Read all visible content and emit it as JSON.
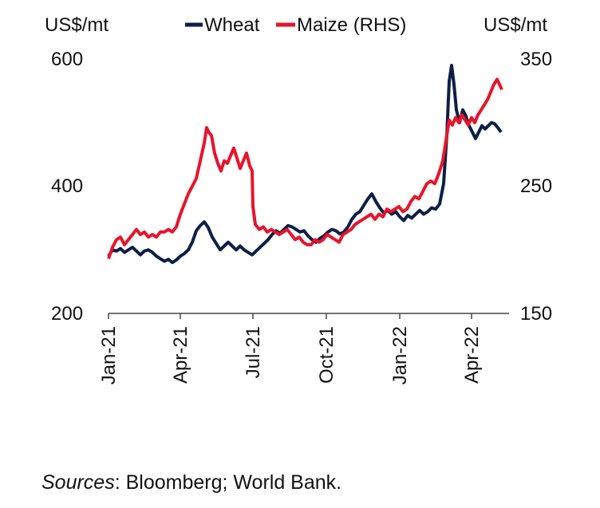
{
  "chart_data": {
    "type": "line",
    "left_unit": "US$/mt",
    "right_unit": "US$/mt",
    "left_ylim": [
      200,
      600
    ],
    "right_ylim": [
      150,
      350
    ],
    "left_ticks": [
      "600",
      "400",
      "200"
    ],
    "right_ticks": [
      "350",
      "250",
      "150"
    ],
    "x_ticks": [
      "Jan-21",
      "Apr-21",
      "Jul-21",
      "Oct-21",
      "Jan-22",
      "Apr-22"
    ],
    "x_tick_dates": [
      "2021-01-01",
      "2021-04-01",
      "2021-07-01",
      "2021-10-01",
      "2022-01-01",
      "2022-04-01"
    ],
    "x_range": [
      "2021-01-01",
      "2022-05-10"
    ],
    "grid": false,
    "legend_position": "top-center",
    "series": [
      {
        "name": "Wheat",
        "axis": "left",
        "color": "#0d1f45",
        "points": [
          [
            "2021-01-01",
            290
          ],
          [
            "2021-01-06",
            300
          ],
          [
            "2021-01-11",
            298
          ],
          [
            "2021-01-16",
            302
          ],
          [
            "2021-01-21",
            296
          ],
          [
            "2021-01-26",
            300
          ],
          [
            "2021-01-31",
            304
          ],
          [
            "2021-02-05",
            298
          ],
          [
            "2021-02-10",
            292
          ],
          [
            "2021-02-15",
            298
          ],
          [
            "2021-02-20",
            300
          ],
          [
            "2021-02-25",
            296
          ],
          [
            "2021-03-02",
            290
          ],
          [
            "2021-03-07",
            286
          ],
          [
            "2021-03-12",
            282
          ],
          [
            "2021-03-17",
            285
          ],
          [
            "2021-03-22",
            280
          ],
          [
            "2021-03-27",
            284
          ],
          [
            "2021-04-01",
            290
          ],
          [
            "2021-04-06",
            294
          ],
          [
            "2021-04-11",
            300
          ],
          [
            "2021-04-16",
            312
          ],
          [
            "2021-04-21",
            330
          ],
          [
            "2021-04-26",
            338
          ],
          [
            "2021-05-01",
            344
          ],
          [
            "2021-05-06",
            335
          ],
          [
            "2021-05-11",
            320
          ],
          [
            "2021-05-16",
            310
          ],
          [
            "2021-05-21",
            300
          ],
          [
            "2021-05-26",
            306
          ],
          [
            "2021-05-31",
            312
          ],
          [
            "2021-06-05",
            306
          ],
          [
            "2021-06-10",
            300
          ],
          [
            "2021-06-15",
            306
          ],
          [
            "2021-06-20",
            300
          ],
          [
            "2021-06-25",
            296
          ],
          [
            "2021-06-30",
            292
          ],
          [
            "2021-07-05",
            298
          ],
          [
            "2021-07-10",
            304
          ],
          [
            "2021-07-15",
            310
          ],
          [
            "2021-07-20",
            316
          ],
          [
            "2021-07-25",
            324
          ],
          [
            "2021-07-30",
            330
          ],
          [
            "2021-08-04",
            326
          ],
          [
            "2021-08-09",
            332
          ],
          [
            "2021-08-14",
            338
          ],
          [
            "2021-08-19",
            336
          ],
          [
            "2021-08-24",
            332
          ],
          [
            "2021-08-29",
            328
          ],
          [
            "2021-09-03",
            330
          ],
          [
            "2021-09-08",
            322
          ],
          [
            "2021-09-13",
            316
          ],
          [
            "2021-09-18",
            312
          ],
          [
            "2021-09-23",
            318
          ],
          [
            "2021-09-28",
            322
          ],
          [
            "2021-10-03",
            328
          ],
          [
            "2021-10-08",
            332
          ],
          [
            "2021-10-13",
            330
          ],
          [
            "2021-10-18",
            325
          ],
          [
            "2021-10-23",
            328
          ],
          [
            "2021-10-28",
            336
          ],
          [
            "2021-11-02",
            348
          ],
          [
            "2021-11-07",
            356
          ],
          [
            "2021-11-12",
            360
          ],
          [
            "2021-11-17",
            370
          ],
          [
            "2021-11-22",
            380
          ],
          [
            "2021-11-27",
            388
          ],
          [
            "2021-12-02",
            376
          ],
          [
            "2021-12-07",
            366
          ],
          [
            "2021-12-12",
            358
          ],
          [
            "2021-12-17",
            362
          ],
          [
            "2021-12-22",
            356
          ],
          [
            "2021-12-27",
            360
          ],
          [
            "2022-01-01",
            352
          ],
          [
            "2022-01-06",
            346
          ],
          [
            "2022-01-11",
            354
          ],
          [
            "2022-01-16",
            350
          ],
          [
            "2022-01-21",
            356
          ],
          [
            "2022-01-26",
            362
          ],
          [
            "2022-01-31",
            356
          ],
          [
            "2022-02-05",
            360
          ],
          [
            "2022-02-10",
            366
          ],
          [
            "2022-02-15",
            364
          ],
          [
            "2022-02-20",
            372
          ],
          [
            "2022-02-25",
            404
          ],
          [
            "2022-03-01",
            480
          ],
          [
            "2022-03-04",
            565
          ],
          [
            "2022-03-07",
            590
          ],
          [
            "2022-03-10",
            560
          ],
          [
            "2022-03-13",
            520
          ],
          [
            "2022-03-17",
            500
          ],
          [
            "2022-03-21",
            520
          ],
          [
            "2022-03-25",
            510
          ],
          [
            "2022-03-29",
            495
          ],
          [
            "2022-04-02",
            485
          ],
          [
            "2022-04-06",
            475
          ],
          [
            "2022-04-10",
            485
          ],
          [
            "2022-04-14",
            495
          ],
          [
            "2022-04-18",
            490
          ],
          [
            "2022-04-22",
            495
          ],
          [
            "2022-04-26",
            500
          ],
          [
            "2022-04-30",
            498
          ],
          [
            "2022-05-04",
            492
          ],
          [
            "2022-05-08",
            485
          ]
        ]
      },
      {
        "name": "Maize (RHS)",
        "axis": "right",
        "color": "#e8142b",
        "points": [
          [
            "2021-01-01",
            193
          ],
          [
            "2021-01-06",
            202
          ],
          [
            "2021-01-11",
            208
          ],
          [
            "2021-01-16",
            210
          ],
          [
            "2021-01-21",
            204
          ],
          [
            "2021-01-26",
            208
          ],
          [
            "2021-01-31",
            212
          ],
          [
            "2021-02-05",
            216
          ],
          [
            "2021-02-10",
            212
          ],
          [
            "2021-02-15",
            214
          ],
          [
            "2021-02-20",
            210
          ],
          [
            "2021-02-25",
            212
          ],
          [
            "2021-03-02",
            210
          ],
          [
            "2021-03-07",
            214
          ],
          [
            "2021-03-12",
            214
          ],
          [
            "2021-03-17",
            216
          ],
          [
            "2021-03-22",
            214
          ],
          [
            "2021-03-27",
            218
          ],
          [
            "2021-04-01",
            228
          ],
          [
            "2021-04-06",
            236
          ],
          [
            "2021-04-11",
            244
          ],
          [
            "2021-04-16",
            250
          ],
          [
            "2021-04-21",
            256
          ],
          [
            "2021-04-26",
            270
          ],
          [
            "2021-05-01",
            284
          ],
          [
            "2021-05-04",
            296
          ],
          [
            "2021-05-07",
            292
          ],
          [
            "2021-05-10",
            290
          ],
          [
            "2021-05-14",
            276
          ],
          [
            "2021-05-18",
            268
          ],
          [
            "2021-05-22",
            262
          ],
          [
            "2021-05-26",
            270
          ],
          [
            "2021-05-30",
            268
          ],
          [
            "2021-06-03",
            274
          ],
          [
            "2021-06-07",
            280
          ],
          [
            "2021-06-11",
            272
          ],
          [
            "2021-06-15",
            264
          ],
          [
            "2021-06-19",
            270
          ],
          [
            "2021-06-23",
            276
          ],
          [
            "2021-06-27",
            266
          ],
          [
            "2021-06-30",
            262
          ],
          [
            "2021-07-01",
            234
          ],
          [
            "2021-07-04",
            220
          ],
          [
            "2021-07-09",
            216
          ],
          [
            "2021-07-14",
            218
          ],
          [
            "2021-07-19",
            214
          ],
          [
            "2021-07-24",
            216
          ],
          [
            "2021-07-29",
            214
          ],
          [
            "2021-08-03",
            212
          ],
          [
            "2021-08-08",
            214
          ],
          [
            "2021-08-13",
            216
          ],
          [
            "2021-08-18",
            212
          ],
          [
            "2021-08-23",
            208
          ],
          [
            "2021-08-28",
            210
          ],
          [
            "2021-09-02",
            206
          ],
          [
            "2021-09-07",
            204
          ],
          [
            "2021-09-12",
            204
          ],
          [
            "2021-09-17",
            208
          ],
          [
            "2021-09-22",
            206
          ],
          [
            "2021-09-27",
            208
          ],
          [
            "2021-10-02",
            212
          ],
          [
            "2021-10-07",
            210
          ],
          [
            "2021-10-12",
            208
          ],
          [
            "2021-10-17",
            206
          ],
          [
            "2021-10-22",
            212
          ],
          [
            "2021-10-27",
            214
          ],
          [
            "2021-11-01",
            216
          ],
          [
            "2021-11-06",
            220
          ],
          [
            "2021-11-11",
            222
          ],
          [
            "2021-11-16",
            224
          ],
          [
            "2021-11-21",
            226
          ],
          [
            "2021-11-26",
            228
          ],
          [
            "2021-12-01",
            224
          ],
          [
            "2021-12-06",
            228
          ],
          [
            "2021-12-11",
            226
          ],
          [
            "2021-12-16",
            232
          ],
          [
            "2021-12-21",
            230
          ],
          [
            "2021-12-26",
            232
          ],
          [
            "2021-12-31",
            234
          ],
          [
            "2022-01-05",
            230
          ],
          [
            "2022-01-10",
            232
          ],
          [
            "2022-01-15",
            238
          ],
          [
            "2022-01-20",
            242
          ],
          [
            "2022-01-25",
            240
          ],
          [
            "2022-01-30",
            246
          ],
          [
            "2022-02-04",
            252
          ],
          [
            "2022-02-09",
            254
          ],
          [
            "2022-02-14",
            252
          ],
          [
            "2022-02-19",
            260
          ],
          [
            "2022-02-24",
            270
          ],
          [
            "2022-03-01",
            290
          ],
          [
            "2022-03-04",
            302
          ],
          [
            "2022-03-08",
            298
          ],
          [
            "2022-03-12",
            304
          ],
          [
            "2022-03-16",
            300
          ],
          [
            "2022-03-20",
            306
          ],
          [
            "2022-03-24",
            302
          ],
          [
            "2022-03-28",
            298
          ],
          [
            "2022-04-01",
            304
          ],
          [
            "2022-04-05",
            300
          ],
          [
            "2022-04-09",
            306
          ],
          [
            "2022-04-13",
            310
          ],
          [
            "2022-04-17",
            314
          ],
          [
            "2022-04-21",
            318
          ],
          [
            "2022-04-25",
            324
          ],
          [
            "2022-04-29",
            330
          ],
          [
            "2022-05-03",
            334
          ],
          [
            "2022-05-06",
            330
          ],
          [
            "2022-05-09",
            326
          ]
        ]
      }
    ]
  },
  "source": {
    "prefix": "Sources",
    "text": ": Bloomberg; World Bank."
  }
}
